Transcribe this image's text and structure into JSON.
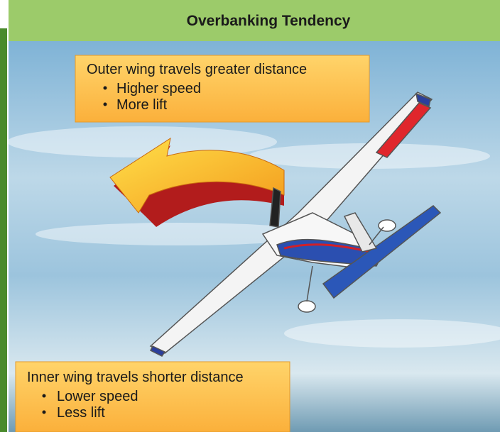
{
  "header": {
    "title": "Overbanking Tendency"
  },
  "callouts": [
    {
      "heading": "Outer wing travels greater distance",
      "bullets": [
        "Higher speed",
        "More lift"
      ]
    },
    {
      "heading": "Inner wing travels shorter distance",
      "bullets": [
        "Lower speed",
        "Less lift"
      ]
    }
  ]
}
